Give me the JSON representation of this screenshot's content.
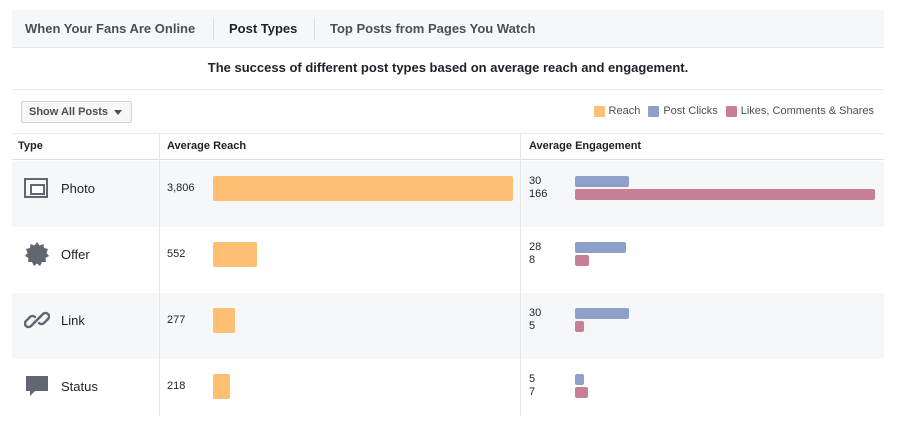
{
  "tabs": [
    {
      "label": "When Your Fans Are Online",
      "active": false
    },
    {
      "label": "Post Types",
      "active": true
    },
    {
      "label": "Top Posts from Pages You Watch",
      "active": false
    }
  ],
  "subtitle": "The success of different post types based on average reach and engagement.",
  "filter": {
    "label": "Show All Posts"
  },
  "legend": [
    {
      "label": "Reach",
      "color": "#fcbf74"
    },
    {
      "label": "Post Clicks",
      "color": "#8e9fc9"
    },
    {
      "label": "Likes, Comments & Shares",
      "color": "#c87f93"
    }
  ],
  "columns": {
    "type": "Type",
    "reach": "Average Reach",
    "engagement": "Average Engagement"
  },
  "chart_data": {
    "type": "bar",
    "categories": [
      "Photo",
      "Offer",
      "Link",
      "Status"
    ],
    "icons": [
      "photo-icon",
      "offer-icon",
      "link-icon",
      "status-icon"
    ],
    "reach": {
      "name": "Reach",
      "values": [
        3806,
        552,
        277,
        218
      ],
      "labels": [
        "3,806",
        "552",
        "277",
        "218"
      ],
      "color": "#fcbf74"
    },
    "series": [
      {
        "name": "Post Clicks",
        "values": [
          30,
          28,
          30,
          5
        ],
        "color": "#8e9fc9"
      },
      {
        "name": "Likes, Comments & Shares",
        "values": [
          166,
          8,
          5,
          7
        ],
        "color": "#c87f93"
      }
    ]
  }
}
